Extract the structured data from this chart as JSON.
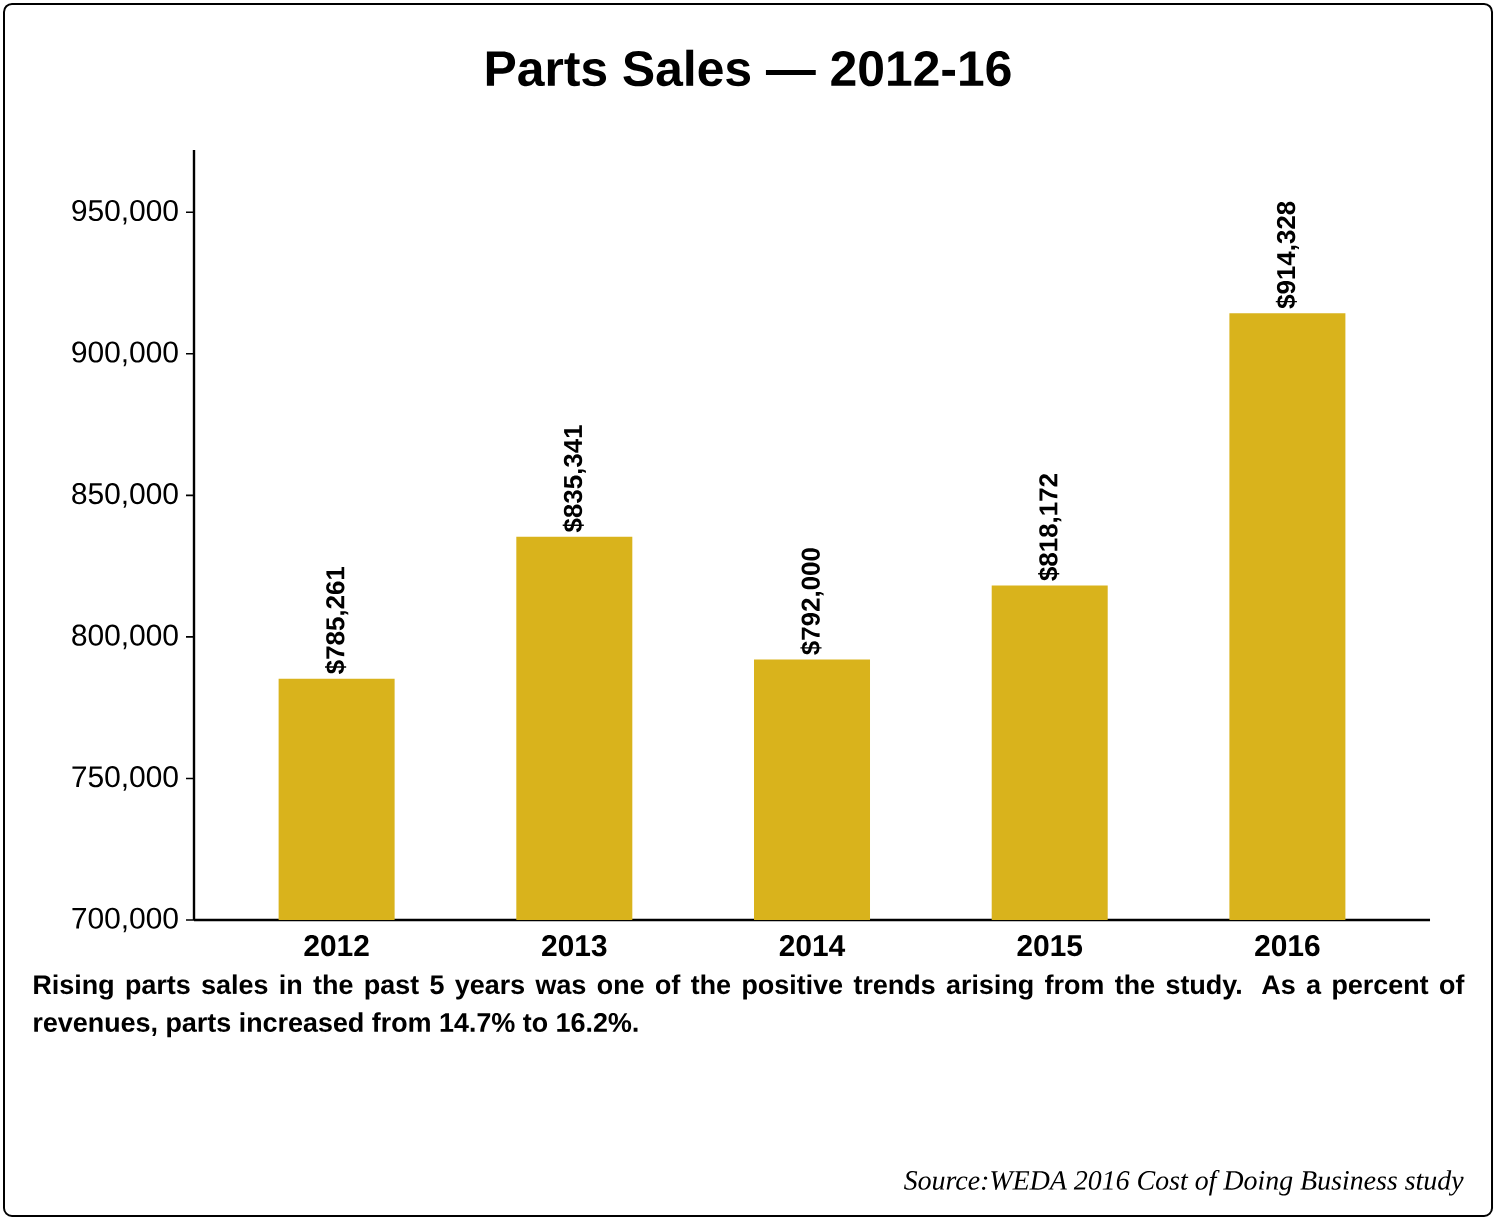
{
  "chart_data": {
    "type": "bar",
    "title": "Parts Sales — 2012-16",
    "categories": [
      "2012",
      "2013",
      "2014",
      "2015",
      "2016"
    ],
    "values": [
      785261,
      835341,
      792000,
      818172,
      914328
    ],
    "value_labels": [
      "$785,261",
      "$835,341",
      "$792,000",
      "$818,172",
      "$914,328"
    ],
    "color": "#d9b31c",
    "ylim": [
      700000,
      972000
    ],
    "yticks": [
      {
        "value": 700000,
        "label": "700,000"
      },
      {
        "value": 750000,
        "label": "750,000"
      },
      {
        "value": 800000,
        "label": "800,000"
      },
      {
        "value": 850000,
        "label": "850,000"
      },
      {
        "value": 900000,
        "label": "900,000"
      },
      {
        "value": 950000,
        "label": "950,000"
      }
    ],
    "annotations": [
      "**Rising parts sales in the past 5 years was one of the positive trends arising from the study. As a percent of revenues, parts increased from 14.7% to 16.2%.**",
      "*Source:WEDA 2016 Cost of Doing Business study*"
    ]
  }
}
